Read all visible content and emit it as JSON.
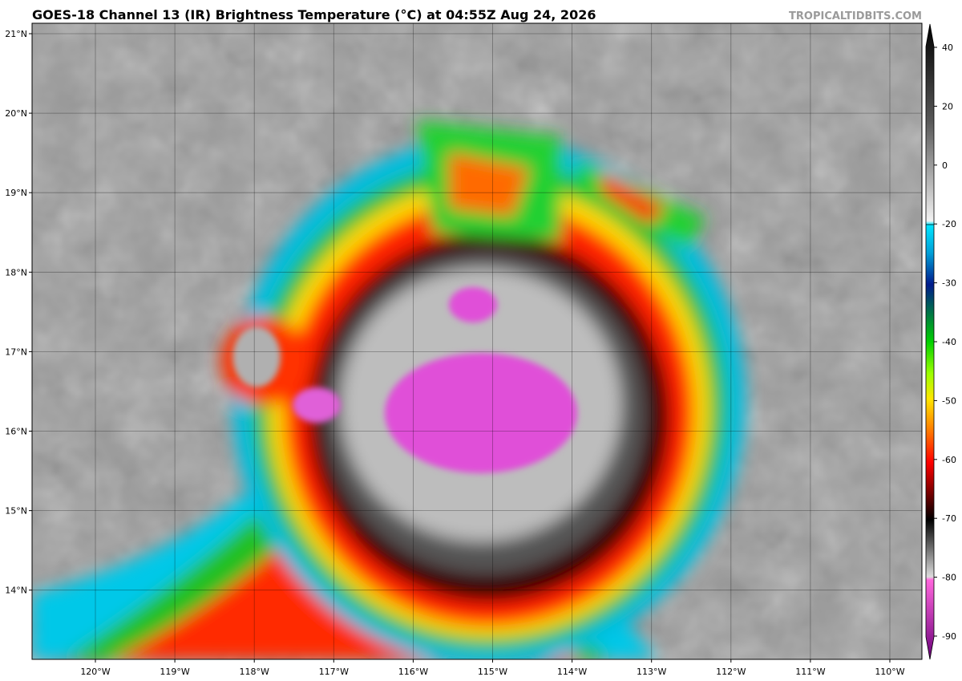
{
  "title": "GOES-18 Channel 13 (IR) Brightness Temperature (°C) at 04:55Z Aug 24, 2026",
  "credit": "TROPICALTIDBITS.COM",
  "lat_labels": [
    "21°N",
    "20°N",
    "19°N",
    "18°N",
    "17°N",
    "16°N",
    "15°N",
    "14°N"
  ],
  "lon_labels": [
    "120°W",
    "119°W",
    "118°W",
    "117°W",
    "116°W",
    "115°W",
    "114°W",
    "113°W",
    "112°W",
    "111°W",
    "110°W"
  ],
  "colorbar": {
    "ticks": [
      40,
      20,
      0,
      -20,
      -30,
      -40,
      -50,
      -60,
      -70,
      -80,
      -90
    ]
  }
}
